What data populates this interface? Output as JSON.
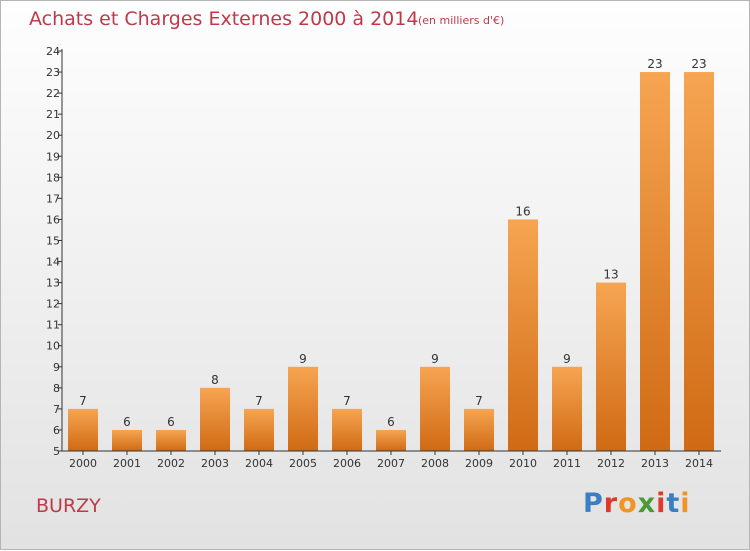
{
  "header": {
    "title": "Achats et Charges Externes 2000 à 2014",
    "subtitle": "(en milliers d'€)"
  },
  "footer": {
    "commune": "BURZY",
    "logo": [
      "P",
      "r",
      "o",
      "x",
      "i",
      "t",
      "i"
    ],
    "logo_colors": [
      "#3a7fc3",
      "#e0392b",
      "#f29422",
      "#4a9a35",
      "#e0392b",
      "#3a7fc3",
      "#f29422"
    ]
  },
  "colors": {
    "bar_light": "#f6a552",
    "bar_dark": "#d06a14",
    "axis": "#333333",
    "text": "#333333",
    "title": "#c0394b"
  },
  "chart_data": {
    "type": "bar",
    "title": "Achats et Charges Externes 2000 à 2014",
    "subtitle": "(en milliers d'€)",
    "categories": [
      "2000",
      "2001",
      "2002",
      "2003",
      "2004",
      "2005",
      "2006",
      "2007",
      "2008",
      "2009",
      "2010",
      "2011",
      "2012",
      "2013",
      "2014"
    ],
    "values": [
      7,
      6,
      6,
      8,
      7,
      9,
      7,
      6,
      9,
      7,
      16,
      9,
      13,
      23,
      23
    ],
    "ylim": [
      5,
      24
    ],
    "yticks": [
      5,
      6,
      7,
      8,
      9,
      10,
      11,
      12,
      13,
      14,
      15,
      16,
      17,
      18,
      19,
      20,
      21,
      22,
      23,
      24
    ],
    "grid": false,
    "legend": "none"
  }
}
